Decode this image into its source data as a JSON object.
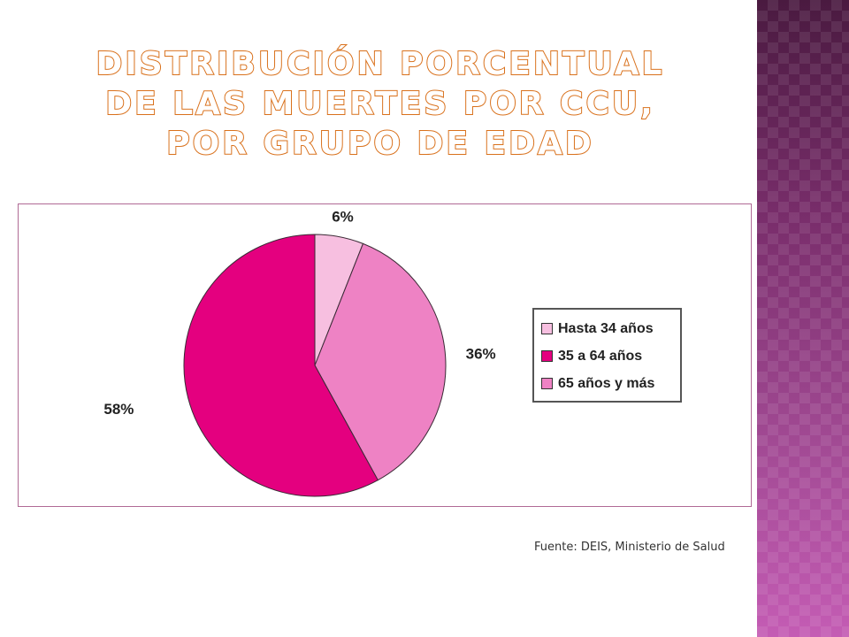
{
  "slide": {
    "title": "Distribución porcentual de las muertes por CCU, por grupo de edad",
    "source": "Fuente: DEIS, Ministerio de Salud"
  },
  "chart_data": {
    "type": "pie",
    "title": "",
    "slices": [
      {
        "label": "Hasta 34 años",
        "value": 6,
        "display": "6%",
        "color": "#f7bfe0"
      },
      {
        "label": "65 años y más",
        "value": 36,
        "display": "36%",
        "color": "#ee82c4"
      },
      {
        "label": "35 a 64 años",
        "value": 58,
        "display": "58%",
        "color": "#e4007f"
      }
    ],
    "legend": {
      "position": "right",
      "items": [
        {
          "label": "Hasta 34 años",
          "color": "#f7bfe0"
        },
        {
          "label": "35 a 64 años",
          "color": "#e4007f"
        },
        {
          "label": "65 años y más",
          "color": "#ee82c4"
        }
      ]
    }
  }
}
